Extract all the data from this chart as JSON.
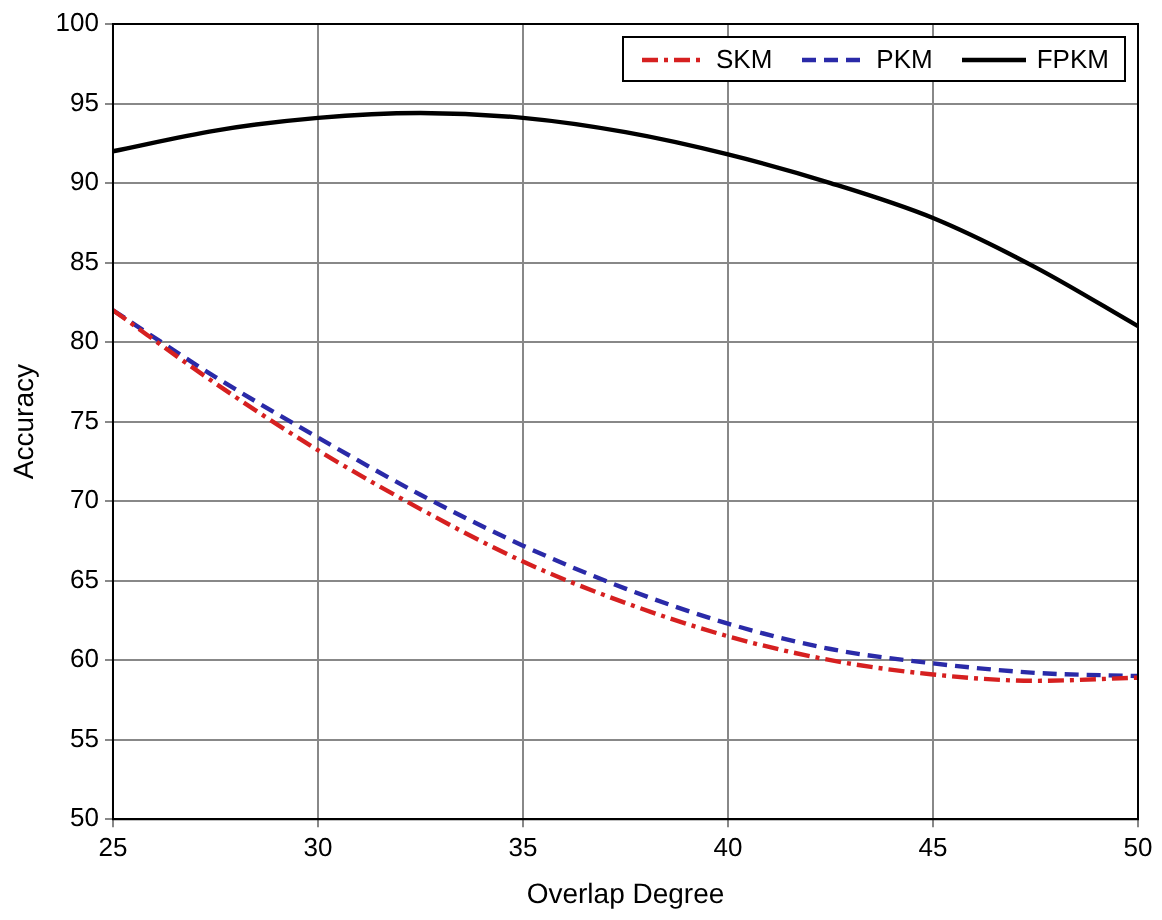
{
  "chart_data": {
    "type": "line",
    "xlabel": "Overlap Degree",
    "ylabel": "Accuracy",
    "x": [
      25,
      27.5,
      30,
      32.5,
      35,
      37.5,
      40,
      42.5,
      45,
      47.5,
      50
    ],
    "series": [
      {
        "name": "SKM",
        "color": "#d62020",
        "line_style": "dashdot",
        "values": [
          82,
          77.4,
          73.2,
          69.5,
          66.2,
          63.6,
          61.5,
          60,
          59.1,
          58.7,
          58.9
        ]
      },
      {
        "name": "PKM",
        "color": "#2a2aa8",
        "line_style": "dashed",
        "values": [
          82,
          77.8,
          74,
          70.4,
          67.2,
          64.5,
          62.3,
          60.7,
          59.8,
          59.2,
          59
        ]
      },
      {
        "name": "FPKM",
        "color": "#000000",
        "line_style": "solid",
        "values": [
          92,
          93.3,
          94.1,
          94.4,
          94.1,
          93.2,
          91.8,
          90,
          87.8,
          84.7,
          81
        ]
      }
    ],
    "xlim": [
      25,
      50
    ],
    "xticks": [
      25,
      30,
      35,
      40,
      45,
      50
    ],
    "ylim": [
      50,
      100
    ],
    "yticks": [
      50,
      55,
      60,
      65,
      70,
      75,
      80,
      85,
      90,
      95,
      100
    ],
    "grid": true,
    "legend": "top right",
    "marker": "none"
  }
}
